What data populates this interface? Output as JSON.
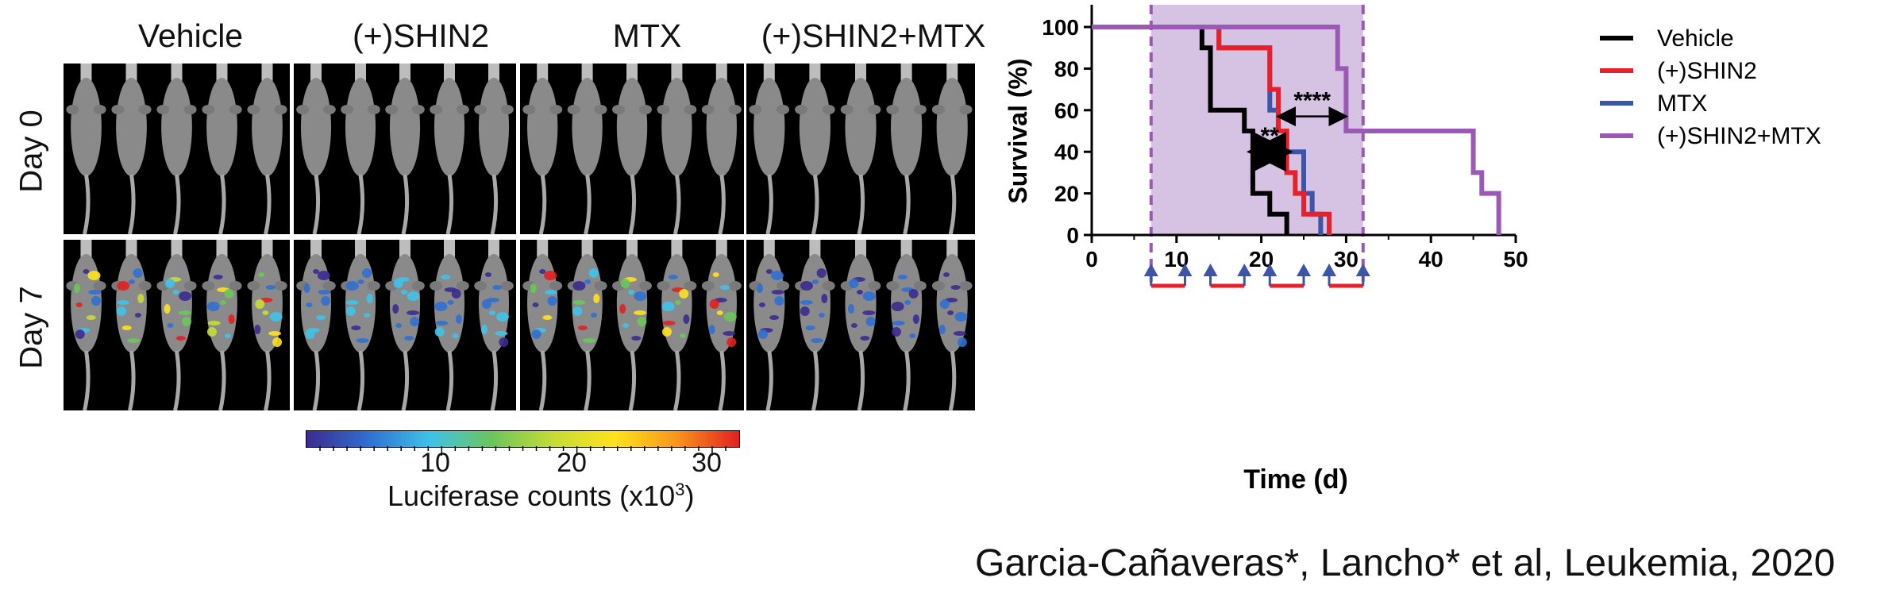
{
  "imaging": {
    "columns": [
      "Vehicle",
      "(+)SHIN2",
      "MTX",
      "(+)SHIN2+MTX"
    ],
    "rows": [
      "Day 0",
      "Day 7"
    ],
    "mice_per_panel": 5,
    "colorbar": {
      "ticks": [
        "10",
        "20",
        "30"
      ],
      "title": "Luciferase counts (x10",
      "title_sup": "3",
      "title_end": ")",
      "colors": [
        "#3b2b8f",
        "#2f6fd0",
        "#3fc2e8",
        "#6cc55a",
        "#c6dc36",
        "#ffe21c",
        "#f7941d",
        "#e1201f"
      ]
    }
  },
  "chart_data": {
    "type": "line",
    "subtype": "kaplan-meier",
    "xlabel": "Time (d)",
    "ylabel": "Survival (%)",
    "xlim": [
      0,
      50
    ],
    "ylim": [
      0,
      100
    ],
    "xticks": [
      0,
      10,
      20,
      30,
      40,
      50
    ],
    "yticks": [
      0,
      20,
      40,
      60,
      80,
      100
    ],
    "treatment_window": {
      "x_start": 7,
      "x_end": 32,
      "color": "#d6c2e3",
      "border": "#9b59b6"
    },
    "series": [
      {
        "name": "Vehicle",
        "color": "#000000",
        "steps": [
          [
            0,
            100
          ],
          [
            13,
            100
          ],
          [
            13,
            90
          ],
          [
            14,
            90
          ],
          [
            14,
            60
          ],
          [
            18,
            60
          ],
          [
            18,
            50
          ],
          [
            19,
            50
          ],
          [
            19,
            20
          ],
          [
            21,
            20
          ],
          [
            21,
            10
          ],
          [
            23,
            10
          ],
          [
            23,
            0
          ]
        ]
      },
      {
        "name": "(+)SHIN2",
        "color": "#e8202a",
        "steps": [
          [
            0,
            100
          ],
          [
            15,
            100
          ],
          [
            15,
            90
          ],
          [
            21,
            90
          ],
          [
            21,
            70
          ],
          [
            22,
            70
          ],
          [
            22,
            50
          ],
          [
            23,
            50
          ],
          [
            23,
            30
          ],
          [
            24,
            30
          ],
          [
            24,
            20
          ],
          [
            25,
            20
          ],
          [
            25,
            10
          ],
          [
            28,
            10
          ],
          [
            28,
            0
          ]
        ]
      },
      {
        "name": "MTX",
        "color": "#3d55a8",
        "steps": [
          [
            0,
            100
          ],
          [
            15,
            100
          ],
          [
            15,
            90
          ],
          [
            21,
            90
          ],
          [
            21,
            60
          ],
          [
            22,
            60
          ],
          [
            22,
            50
          ],
          [
            23,
            50
          ],
          [
            23,
            40
          ],
          [
            25,
            40
          ],
          [
            25,
            20
          ],
          [
            26,
            20
          ],
          [
            26,
            10
          ],
          [
            27,
            10
          ],
          [
            27,
            0
          ]
        ]
      },
      {
        "name": "(+)SHIN2+MTX",
        "color": "#9b59b6",
        "steps": [
          [
            0,
            100
          ],
          [
            29,
            100
          ],
          [
            29,
            80
          ],
          [
            30,
            80
          ],
          [
            30,
            50
          ],
          [
            45,
            50
          ],
          [
            45,
            30
          ],
          [
            46,
            30
          ],
          [
            46,
            20
          ],
          [
            48,
            20
          ],
          [
            48,
            0
          ]
        ]
      }
    ],
    "annotations": [
      {
        "text": "**",
        "x_from": 19,
        "x_to": 23,
        "y": 40
      },
      {
        "text": "****",
        "x_from": 22,
        "x_to": 30,
        "y": 57
      }
    ],
    "dosing": {
      "blue_arrows_x": [
        7,
        11,
        14,
        18,
        21,
        25,
        28,
        32
      ],
      "red_bars": [
        [
          7,
          11
        ],
        [
          14,
          18
        ],
        [
          21,
          25
        ],
        [
          28,
          32
        ]
      ]
    },
    "legend": {
      "placement": "right",
      "items": [
        "Vehicle",
        "(+)SHIN2",
        "MTX",
        "(+)SHIN2+MTX"
      ]
    }
  },
  "citation": "Garcia-Cañaveras*, Lancho* et al, Leukemia, 2020"
}
